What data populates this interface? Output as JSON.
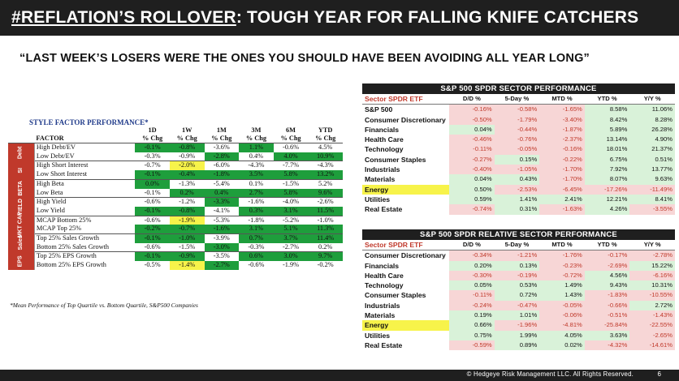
{
  "header": {
    "title_emphasis": "#REFLATION’S ROLLOVER",
    "title_rest": ": TOUGH YEAR FOR FALLING KNIFE CATCHERS"
  },
  "subtitle": "“LAST WEEK’S LOSERS WERE THE ONES YOU SHOULD HAVE BEEN AVOIDING ALL YEAR LONG”",
  "style_factor": {
    "title": "STYLE FACTOR PERFORMANCE*",
    "header_periods": [
      "1D",
      "1W",
      "1M",
      "3M",
      "6M",
      "YTD"
    ],
    "factor_label": "FACTOR",
    "chg_label": "% Chg",
    "groups": [
      {
        "label": "Debt",
        "rows": [
          {
            "name": "High Debt/EV",
            "values": [
              "-0.1%",
              "-0.8%",
              "-3.6%",
              "1.1%",
              "-0.6%",
              "4.5%"
            ],
            "hl": [
              "g",
              "g",
              "",
              "g",
              "",
              ""
            ]
          },
          {
            "name": "Low Debt/EV",
            "values": [
              "-0.3%",
              "-0.9%",
              "-2.8%",
              "0.4%",
              "4.0%",
              "10.9%"
            ],
            "hl": [
              "",
              "",
              "g",
              "",
              "g",
              "g"
            ]
          }
        ]
      },
      {
        "label": "SI",
        "rows": [
          {
            "name": "High Short Interest",
            "values": [
              "-0.7%",
              "-2.0%",
              "-6.0%",
              "-4.3%",
              "-7.7%",
              "-4.3%"
            ],
            "hl": [
              "",
              "y",
              "",
              "",
              "",
              ""
            ]
          },
          {
            "name": "Low Short Interest",
            "values": [
              "-0.1%",
              "-0.4%",
              "-1.8%",
              "3.5%",
              "5.8%",
              "13.2%"
            ],
            "hl": [
              "g",
              "g",
              "g",
              "g",
              "g",
              "g"
            ]
          }
        ]
      },
      {
        "label": "BETA",
        "rows": [
          {
            "name": "High Beta",
            "values": [
              "0.0%",
              "-1.3%",
              "-5.4%",
              "0.1%",
              "-1.5%",
              "5.2%"
            ],
            "hl": [
              "g",
              "",
              "",
              "",
              "",
              ""
            ]
          },
          {
            "name": "Low Beta",
            "values": [
              "-0.1%",
              "0.2%",
              "0.4%",
              "2.7%",
              "5.8%",
              "9.6%"
            ],
            "hl": [
              "",
              "g",
              "g",
              "g",
              "g",
              "g"
            ]
          }
        ]
      },
      {
        "label": "YIELD",
        "rows": [
          {
            "name": "High Yield",
            "values": [
              "-0.6%",
              "-1.2%",
              "-3.3%",
              "-1.6%",
              "-4.0%",
              "-2.6%"
            ],
            "hl": [
              "",
              "",
              "g",
              "",
              "",
              ""
            ]
          },
          {
            "name": "Low Yield",
            "values": [
              "-0.1%",
              "-0.8%",
              "-4.1%",
              "0.3%",
              "3.1%",
              "11.5%"
            ],
            "hl": [
              "g",
              "g",
              "",
              "g",
              "g",
              "g"
            ]
          }
        ]
      },
      {
        "label": "MKT CAP",
        "rows": [
          {
            "name": "MCAP Bottom 25%",
            "values": [
              "-0.6%",
              "-1.9%",
              "-5.3%",
              "-1.8%",
              "-5.2%",
              "-1.0%"
            ],
            "hl": [
              "",
              "y",
              "",
              "",
              "",
              ""
            ]
          },
          {
            "name": "MCAP Top 25%",
            "values": [
              "-0.2%",
              "-0.7%",
              "-1.6%",
              "3.1%",
              "5.1%",
              "11.3%"
            ],
            "hl": [
              "g",
              "g",
              "g",
              "g",
              "g",
              "g"
            ]
          }
        ]
      },
      {
        "label": "Sales",
        "rows": [
          {
            "name": "Top 25% Sales Growth",
            "values": [
              "-0.1%",
              "-1.0%",
              "-3.9%",
              "0.7%",
              "3.7%",
              "11.4%"
            ],
            "hl": [
              "g",
              "g",
              "",
              "g",
              "g",
              "g"
            ]
          },
          {
            "name": "Bottom 25% Sales Growth",
            "values": [
              "-0.6%",
              "-1.5%",
              "-3.0%",
              "-0.3%",
              "-2.7%",
              "0.2%"
            ],
            "hl": [
              "",
              "",
              "g",
              "",
              "",
              ""
            ]
          }
        ]
      },
      {
        "label": "EPS",
        "rows": [
          {
            "name": "Top 25% EPS Growth",
            "values": [
              "-0.1%",
              "-0.9%",
              "-3.5%",
              "0.6%",
              "3.0%",
              "9.7%"
            ],
            "hl": [
              "g",
              "g",
              "",
              "g",
              "g",
              "g"
            ]
          },
          {
            "name": "Bottom 25% EPS Growth",
            "values": [
              "-0.5%",
              "-1.4%",
              "-2.7%",
              "-0.6%",
              "-1.9%",
              "-0.2%"
            ],
            "hl": [
              "",
              "y",
              "g",
              "",
              "",
              ""
            ]
          }
        ]
      }
    ],
    "footnote": "*Mean Performance of Top Quartile vs. Bottom Quartile, S&P500 Companies"
  },
  "sector_performance": {
    "title": "S&P 500 SPDR SECTOR PERFORMANCE",
    "columns": [
      "Sector SPDR ETF",
      "D/D %",
      "5-Day %",
      "MTD %",
      "YTD %",
      "Y/Y %"
    ],
    "rows": [
      {
        "name": "S&P 500",
        "values": [
          "-0.16%",
          "-0.58%",
          "-1.65%",
          "8.58%",
          "11.06%"
        ]
      },
      {
        "name": "Consumer Discretionary",
        "values": [
          "-0.50%",
          "-1.79%",
          "-3.40%",
          "8.42%",
          "8.28%"
        ]
      },
      {
        "name": "Financials",
        "values": [
          "0.04%",
          "-0.44%",
          "-1.87%",
          "5.89%",
          "26.28%"
        ]
      },
      {
        "name": "Health Care",
        "values": [
          "-0.46%",
          "-0.76%",
          "-2.37%",
          "13.14%",
          "4.90%"
        ]
      },
      {
        "name": "Technology",
        "values": [
          "-0.11%",
          "-0.05%",
          "-0.16%",
          "18.01%",
          "21.37%"
        ]
      },
      {
        "name": "Consumer Staples",
        "values": [
          "-0.27%",
          "0.15%",
          "-0.22%",
          "6.75%",
          "0.51%"
        ]
      },
      {
        "name": "Industrials",
        "values": [
          "-0.40%",
          "-1.05%",
          "-1.70%",
          "7.92%",
          "13.77%"
        ]
      },
      {
        "name": "Materials",
        "values": [
          "0.04%",
          "0.43%",
          "-1.70%",
          "8.07%",
          "9.63%"
        ]
      },
      {
        "name": "Energy",
        "values": [
          "0.50%",
          "-2.53%",
          "-6.45%",
          "-17.26%",
          "-11.49%"
        ],
        "highlight": true
      },
      {
        "name": "Utilities",
        "values": [
          "0.59%",
          "1.41%",
          "2.41%",
          "12.21%",
          "8.41%"
        ]
      },
      {
        "name": "Real Estate",
        "values": [
          "-0.74%",
          "0.31%",
          "-1.63%",
          "4.26%",
          "-3.55%"
        ]
      }
    ]
  },
  "relative_performance": {
    "title": "S&P 500 SPDR RELATIVE SECTOR PERFORMANCE",
    "columns": [
      "Sector SPDR ETF",
      "D/D %",
      "5-Day %",
      "MTD %",
      "YTD %",
      "Y/Y %"
    ],
    "rows": [
      {
        "name": "Consumer Discretionary",
        "values": [
          "-0.34%",
          "-1.21%",
          "-1.76%",
          "-0.17%",
          "-2.78%"
        ]
      },
      {
        "name": "Financials",
        "values": [
          "0.20%",
          "0.13%",
          "-0.23%",
          "-2.69%",
          "15.22%"
        ]
      },
      {
        "name": "Health Care",
        "values": [
          "-0.30%",
          "-0.19%",
          "-0.72%",
          "4.56%",
          "-6.16%"
        ]
      },
      {
        "name": "Technology",
        "values": [
          "0.05%",
          "0.53%",
          "1.49%",
          "9.43%",
          "10.31%"
        ]
      },
      {
        "name": "Consumer Staples",
        "values": [
          "-0.11%",
          "0.72%",
          "1.43%",
          "-1.83%",
          "-10.55%"
        ]
      },
      {
        "name": "Industrials",
        "values": [
          "-0.24%",
          "-0.47%",
          "-0.05%",
          "-0.66%",
          "2.72%"
        ]
      },
      {
        "name": "Materials",
        "values": [
          "0.19%",
          "1.01%",
          "-0.06%",
          "-0.51%",
          "-1.43%"
        ]
      },
      {
        "name": "Energy",
        "values": [
          "0.66%",
          "-1.96%",
          "-4.81%",
          "-25.84%",
          "-22.55%"
        ],
        "highlight": true
      },
      {
        "name": "Utilities",
        "values": [
          "0.75%",
          "1.99%",
          "4.05%",
          "3.63%",
          "-2.65%"
        ]
      },
      {
        "name": "Real Estate",
        "values": [
          "-0.59%",
          "0.89%",
          "0.02%",
          "-4.32%",
          "-14.61%"
        ]
      }
    ]
  },
  "footer": {
    "copyright": "© Hedgeye Risk Management LLC. All Rights Reserved.",
    "page_number": "6"
  }
}
